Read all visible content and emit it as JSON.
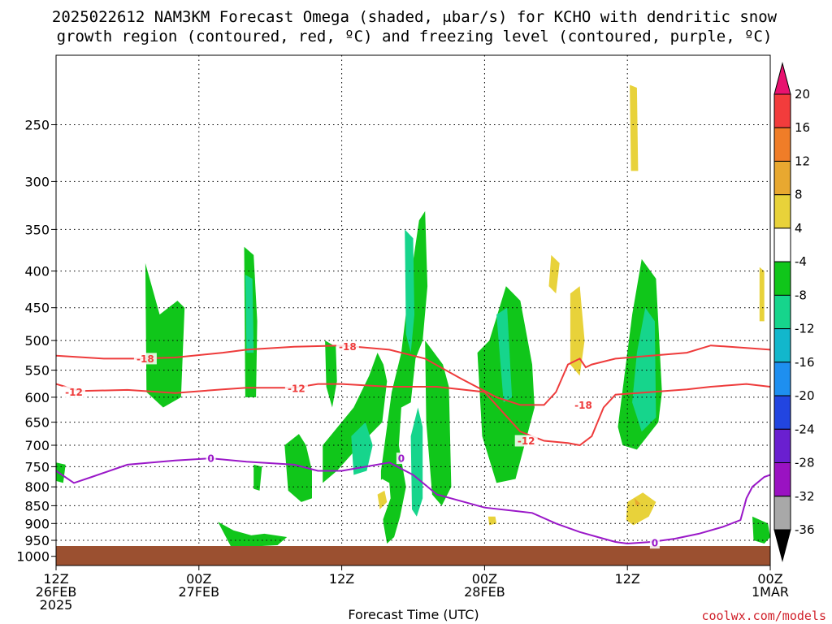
{
  "title_line1": "2025022612 NAM3KM Forecast Omega (shaded, μbar/s) for KCHO with dendritic snow",
  "title_line2": "growth region (contoured, red, ºC) and freezing level (contoured, purple, ºC)",
  "credit": "coolwx.com/models",
  "chart_data": {
    "type": "time-height cross-section",
    "xlabel": "Forecast Time (UTC)",
    "x_ticks": [
      {
        "hours": 0,
        "lines": [
          "12Z",
          "26FEB",
          "2025"
        ]
      },
      {
        "hours": 12,
        "lines": [
          "00Z",
          "27FEB"
        ]
      },
      {
        "hours": 24,
        "lines": [
          "12Z"
        ]
      },
      {
        "hours": 36,
        "lines": [
          "00Z",
          "28FEB"
        ]
      },
      {
        "hours": 48,
        "lines": [
          "12Z"
        ]
      },
      {
        "hours": 60,
        "lines": [
          "00Z",
          "1MAR"
        ]
      }
    ],
    "x_range_hours": [
      0,
      60
    ],
    "y_ticks_hpa": [
      250,
      300,
      350,
      400,
      450,
      500,
      550,
      600,
      650,
      700,
      750,
      800,
      850,
      900,
      950,
      1000
    ],
    "y_scale": "log pressure (reversed)",
    "y_range_hpa": [
      200,
      1030
    ],
    "grid": true,
    "colorbar": {
      "labels": [
        "20",
        "16",
        "12",
        "8",
        "4",
        "-4",
        "-8",
        "-12",
        "-16",
        "-20",
        "-24",
        "-28",
        "-32",
        "-36"
      ],
      "colors": [
        "#e8126f",
        "#f23c3c",
        "#f07d28",
        "#e8a830",
        "#e8d23a",
        "#ffffff",
        "#10c61a",
        "#16d58c",
        "#12b7cc",
        "#1e8ff0",
        "#2245e0",
        "#6a1fd0",
        "#9a12c2",
        "#a8a8a8",
        "#000000"
      ]
    },
    "omega_areas": [
      {
        "level": "4",
        "hours": [
          0.0,
          2.6,
          2.6,
          0.6,
          0.0
        ],
        "hpa": [
          380,
          400,
          510,
          540,
          500
        ]
      },
      {
        "level": "4",
        "hours": [
          3.6,
          4.2,
          4.4,
          3.3
        ],
        "hpa": [
          495,
          500,
          560,
          555
        ]
      },
      {
        "level": "-4",
        "hours": [
          0.0,
          0.8,
          0.6,
          0.0
        ],
        "hpa": [
          740,
          745,
          790,
          785
        ]
      },
      {
        "level": "4",
        "hours": [
          6.6,
          7.5,
          7.6,
          6.8,
          6.2
        ],
        "hpa": [
          860,
          865,
          885,
          900,
          885
        ]
      },
      {
        "level": "4",
        "hours": [
          5.8,
          6.1,
          6.1,
          5.7
        ],
        "hpa": [
          370,
          372,
          385,
          385
        ]
      },
      {
        "level": "-4",
        "hours": [
          7.5,
          8.7,
          10.2,
          10.8,
          10.5,
          9.0,
          7.6
        ],
        "hpa": [
          390,
          460,
          440,
          450,
          600,
          620,
          590
        ]
      },
      {
        "level": "4",
        "hours": [
          13.6,
          14.6,
          14.8,
          14.2,
          13.4
        ],
        "hpa": [
          450,
          460,
          580,
          590,
          550
        ]
      },
      {
        "level": "-4",
        "hours": [
          15.8,
          16.6,
          16.9,
          16.8,
          15.9
        ],
        "hpa": [
          370,
          380,
          470,
          600,
          600
        ]
      },
      {
        "level": "-8",
        "hours": [
          15.9,
          16.5,
          16.6,
          16.0
        ],
        "hpa": [
          405,
          410,
          520,
          520
        ]
      },
      {
        "level": "4",
        "hours": [
          17.1,
          18.0,
          18.3,
          17.5,
          17.0
        ],
        "hpa": [
          540,
          545,
          600,
          610,
          590
        ]
      },
      {
        "level": "-4",
        "hours": [
          16.6,
          17.3,
          17.1,
          16.6
        ],
        "hpa": [
          745,
          750,
          810,
          805
        ]
      },
      {
        "level": "4",
        "hours": [
          13.6,
          14.3,
          14.3,
          13.6
        ],
        "hpa": [
          755,
          760,
          830,
          825
        ]
      },
      {
        "level": "-4",
        "hours": [
          13.6,
          14.9,
          16.4,
          17.5,
          19.4,
          18.6,
          16.0,
          14.7
        ],
        "hpa": [
          895,
          920,
          935,
          930,
          940,
          965,
          970,
          970
        ]
      },
      {
        "level": "-4",
        "hours": [
          19.2,
          20.4,
          21.0,
          21.5,
          21.5,
          20.6,
          19.5
        ],
        "hpa": [
          700,
          675,
          700,
          760,
          830,
          840,
          810
        ]
      },
      {
        "level": "-4",
        "hours": [
          22.6,
          23.5,
          23.6,
          23.2,
          22.7
        ],
        "hpa": [
          500,
          510,
          570,
          620,
          580
        ]
      },
      {
        "level": "-4",
        "hours": [
          22.4,
          25.0,
          26.3,
          27.0,
          27.5,
          27.8,
          27.4,
          25.5,
          23.6,
          22.4
        ],
        "hpa": [
          700,
          620,
          560,
          520,
          540,
          570,
          650,
          700,
          760,
          790
        ]
      },
      {
        "level": "-4",
        "hours": [
          27.3,
          28.2,
          29.0,
          29.6,
          30.5,
          31.0,
          31.2,
          30.8,
          30.2,
          29.8,
          29.0,
          28.8,
          29.4,
          28.9,
          28.4,
          27.8,
          27.5,
          27.3
        ],
        "hpa": [
          760,
          590,
          520,
          430,
          340,
          330,
          420,
          500,
          530,
          610,
          620,
          700,
          800,
          880,
          940,
          960,
          900,
          820
        ]
      },
      {
        "level": "-4",
        "hours": [
          31.0,
          32.5,
          33.0,
          33.2,
          32.4,
          31.6,
          31.1
        ],
        "hpa": [
          500,
          540,
          580,
          800,
          850,
          820,
          650
        ]
      },
      {
        "level": "-8",
        "hours": [
          29.8,
          30.4,
          30.8,
          30.8,
          30.3,
          29.9
        ],
        "hpa": [
          680,
          620,
          660,
          830,
          880,
          860
        ]
      },
      {
        "level": "-8",
        "hours": [
          29.3,
          30.0,
          30.1,
          29.8,
          29.4
        ],
        "hpa": [
          350,
          360,
          460,
          520,
          490
        ]
      },
      {
        "level": "-8",
        "hours": [
          24.8,
          26.0,
          26.6,
          26.1,
          25.0
        ],
        "hpa": [
          680,
          650,
          700,
          760,
          770
        ]
      },
      {
        "level": "4",
        "hours": [
          26.6,
          27.4,
          28.0,
          28.1,
          27.4,
          26.5,
          26.1
        ],
        "hpa": [
          800,
          780,
          790,
          830,
          895,
          900,
          870
        ]
      },
      {
        "level": "8",
        "hours": [
          27.0,
          27.6,
          27.8,
          27.2
        ],
        "hpa": [
          820,
          810,
          840,
          860
        ]
      },
      {
        "level": "4",
        "hours": [
          35.4,
          36.0,
          37.0,
          37.1,
          36.6,
          35.6
        ],
        "hpa": [
          360,
          345,
          390,
          450,
          470,
          440
        ]
      },
      {
        "level": "-4",
        "hours": [
          35.4,
          36.4,
          37.8,
          39.0,
          40.0,
          40.2,
          38.6,
          37.0,
          35.8
        ],
        "hpa": [
          520,
          500,
          420,
          440,
          540,
          620,
          780,
          790,
          680
        ]
      },
      {
        "level": "-8",
        "hours": [
          37.0,
          37.9,
          38.3,
          37.6
        ],
        "hpa": [
          460,
          450,
          600,
          610
        ]
      },
      {
        "level": "4",
        "hours": [
          35.2,
          36.8,
          37.3,
          37.5,
          36.6,
          35.6
        ],
        "hpa": [
          870,
          860,
          880,
          920,
          950,
          940
        ]
      },
      {
        "level": "8",
        "hours": [
          36.3,
          36.9,
          37.0,
          36.4
        ],
        "hpa": [
          880,
          880,
          900,
          905
        ]
      },
      {
        "level": "4",
        "hours": [
          39.5,
          40.3,
          41.0,
          41.5,
          42.3,
          42.8,
          43.6,
          44.4,
          45.5,
          46.0,
          47.0,
          48.0,
          48.4,
          47.6,
          46.3,
          46.1,
          45.2,
          44.8,
          44.6,
          43.8,
          43.0,
          41.3,
          40.0
        ],
        "hpa": [
          430,
          355,
          345,
          305,
          290,
          250,
          220,
          205,
          210,
          260,
          250,
          200,
          250,
          300,
          300,
          400,
          420,
          470,
          530,
          560,
          480,
          430,
          450
        ]
      },
      {
        "level": "8",
        "hours": [
          41.6,
          42.3,
          42.0,
          41.4
        ],
        "hpa": [
          380,
          390,
          430,
          420
        ]
      },
      {
        "level": "8",
        "hours": [
          43.2,
          44.0,
          44.4,
          44.0,
          43.2
        ],
        "hpa": [
          430,
          420,
          500,
          560,
          540
        ]
      },
      {
        "level": "8",
        "hours": [
          48.2,
          48.8,
          48.9,
          48.3
        ],
        "hpa": [
          220,
          222,
          290,
          290
        ]
      },
      {
        "level": "4",
        "hours": [
          49.5,
          50.5,
          51.2,
          51.4,
          51.8,
          52.0,
          52.3,
          52.8,
          53.5,
          53.2,
          52.8
        ],
        "hpa": [
          320,
          315,
          280,
          250,
          242,
          260,
          300,
          340,
          420,
          480,
          470
        ]
      },
      {
        "level": "4",
        "hours": [
          52.6,
          53.5,
          54.2,
          55.3,
          55.8,
          57.3,
          58.8,
          59.6,
          60.0,
          60.0,
          59.0,
          58.2,
          57.9,
          56.5,
          55.2,
          54.5,
          54.1
        ],
        "hpa": [
          360,
          280,
          230,
          230,
          290,
          280,
          190,
          190,
          290,
          650,
          700,
          800,
          860,
          760,
          740,
          720,
          660
        ]
      },
      {
        "level": "8",
        "hours": [
          59.1,
          59.5,
          59.5,
          59.1
        ],
        "hpa": [
          395,
          400,
          470,
          470
        ]
      },
      {
        "level": "-4",
        "hours": [
          47.2,
          48.4,
          49.2,
          50.4,
          50.9,
          50.6,
          48.8,
          47.6
        ],
        "hpa": [
          660,
          460,
          385,
          410,
          590,
          650,
          710,
          700
        ]
      },
      {
        "level": "-8",
        "hours": [
          48.8,
          49.5,
          50.3,
          50.4,
          49.2,
          48.4
        ],
        "hpa": [
          520,
          450,
          470,
          640,
          670,
          610
        ]
      },
      {
        "level": "4",
        "hours": [
          47.0,
          48.8,
          50.8,
          51.3,
          50.6,
          48.8,
          46.8,
          47.0
        ],
        "hpa": [
          820,
          790,
          820,
          860,
          900,
          920,
          920,
          880
        ]
      },
      {
        "level": "8",
        "hours": [
          48.0,
          49.3,
          50.4,
          49.8,
          48.5,
          47.9
        ],
        "hpa": [
          840,
          815,
          840,
          880,
          905,
          890
        ]
      },
      {
        "level": "12",
        "hours": [
          48.6,
          49.1,
          48.7
        ],
        "hpa": [
          830,
          845,
          850
        ]
      },
      {
        "level": "-4",
        "hours": [
          58.5,
          59.8,
          60.0,
          59.5,
          58.6
        ],
        "hpa": [
          880,
          900,
          940,
          960,
          950
        ]
      }
    ],
    "isotherms": [
      {
        "label": "-18",
        "color": "#ee3b3b",
        "hours": [
          0,
          4,
          7,
          10,
          14,
          16,
          20,
          24,
          28,
          31,
          34,
          37,
          39,
          41,
          42,
          43,
          44,
          44.5,
          45,
          47,
          50,
          53,
          55,
          58,
          60
        ],
        "hpa": [
          525,
          530,
          530,
          528,
          520,
          515,
          510,
          508,
          515,
          530,
          565,
          600,
          615,
          615,
          590,
          540,
          530,
          545,
          540,
          530,
          525,
          520,
          508,
          512,
          515
        ]
      },
      {
        "label": "-12",
        "color": "#ee3b3b",
        "hours": [
          0,
          2,
          6,
          10,
          14,
          16,
          20,
          22,
          24,
          28,
          32,
          36,
          39,
          41,
          43,
          44,
          45,
          46,
          47,
          50,
          53,
          55,
          58,
          60
        ],
        "hpa": [
          575,
          588,
          586,
          592,
          585,
          582,
          582,
          575,
          575,
          580,
          580,
          590,
          670,
          690,
          695,
          700,
          680,
          620,
          595,
          590,
          585,
          580,
          575,
          580
        ]
      },
      {
        "label": "0",
        "color": "#9a18c8",
        "hours": [
          0,
          1.5,
          3,
          6,
          10,
          13,
          16,
          20,
          22,
          24,
          28,
          30,
          32,
          36,
          40,
          42,
          44,
          46,
          47,
          48,
          50,
          52,
          54,
          56,
          57.5,
          58,
          58.5,
          59.5,
          60
        ],
        "hpa": [
          760,
          790,
          775,
          745,
          735,
          730,
          738,
          745,
          760,
          760,
          740,
          770,
          820,
          855,
          870,
          900,
          925,
          945,
          955,
          960,
          955,
          945,
          930,
          910,
          890,
          830,
          800,
          775,
          770
        ]
      }
    ],
    "isotherm_labels": [
      {
        "text": "-18",
        "hours": 7.5,
        "hpa": 530,
        "color": "#ee3b3b"
      },
      {
        "text": "-18",
        "hours": 24.5,
        "hpa": 510,
        "color": "#ee3b3b"
      },
      {
        "text": "-18",
        "hours": 44.3,
        "hpa": 615,
        "color": "#ee3b3b"
      },
      {
        "text": "-12",
        "hours": 1.5,
        "hpa": 590,
        "color": "#ee3b3b"
      },
      {
        "text": "-12",
        "hours": 20.2,
        "hpa": 583,
        "color": "#ee3b3b"
      },
      {
        "text": "-12",
        "hours": 39.5,
        "hpa": 690,
        "color": "#ee3b3b"
      },
      {
        "text": "0",
        "hours": 13.0,
        "hpa": 730,
        "color": "#9a18c8"
      },
      {
        "text": "0",
        "hours": 29.0,
        "hpa": 730,
        "color": "#9a18c8"
      },
      {
        "text": "0",
        "hours": 50.3,
        "hpa": 958,
        "color": "#9a18c8"
      }
    ],
    "ground_color": "#9b5030"
  }
}
